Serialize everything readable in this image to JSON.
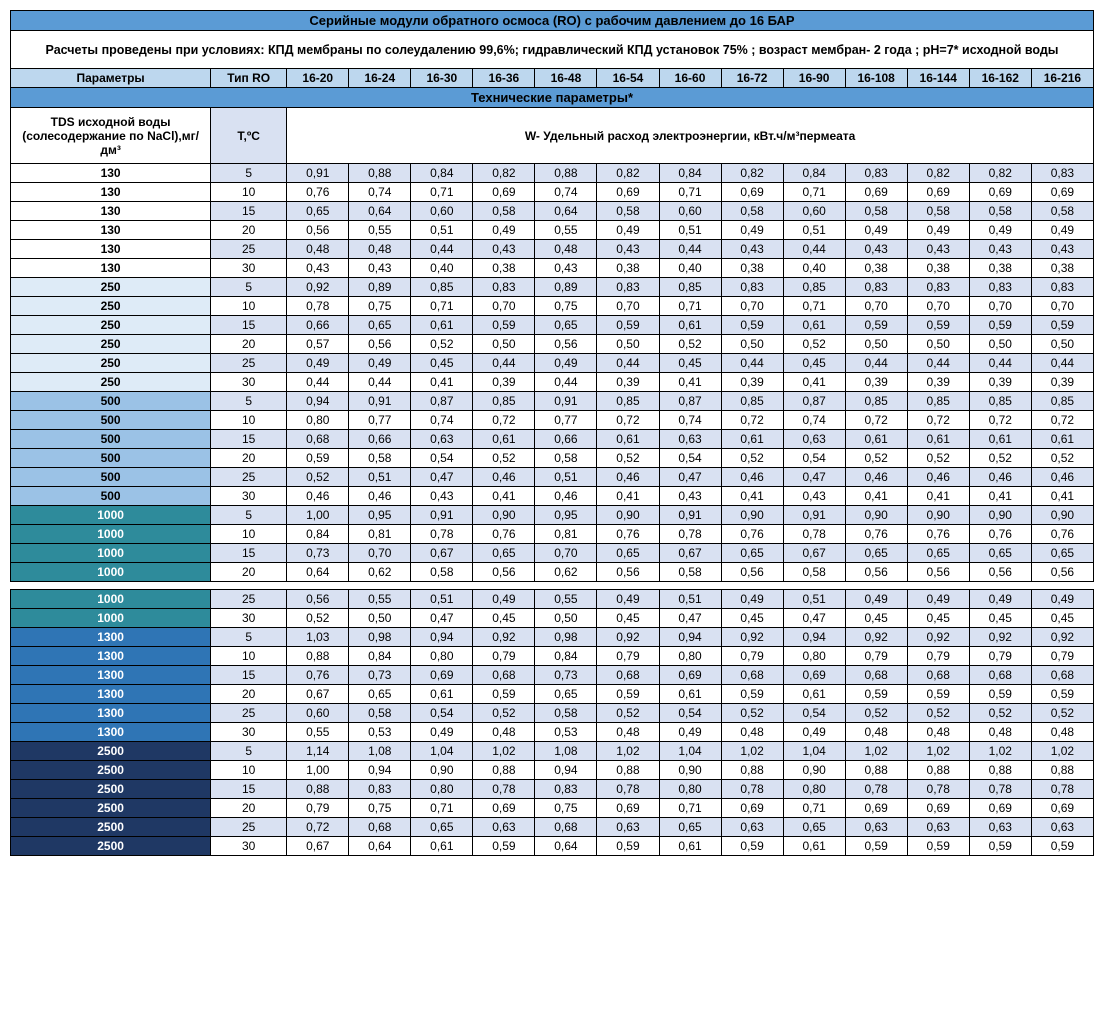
{
  "title": "Серийные модули обратного осмоса (RO) с рабочим давлением до 16 БАР",
  "subtitle": "Расчеты проведены при условиях: КПД мембраны по солеудалению 99,6%; гидравлический КПД установок 75% ; возраст мембран- 2 года ; рН=7* исходной воды",
  "header_param": "Параметры",
  "header_type": "Тип RO",
  "models": [
    "16-20",
    "16-24",
    "16-30",
    "16-36",
    "16-48",
    "16-54",
    "16-60",
    "16-72",
    "16-90",
    "16-108",
    "16-144",
    "16-162",
    "16-216"
  ],
  "tech_params": "Технические параметры*",
  "tds_label": "TDS исходной воды (солесодержание по NaCl),мг/дм³",
  "temp_label": "Т,ºС",
  "w_label": "W- Удельный расход электроэнергии, кВт.ч/м³пермеата",
  "colors": {
    "130": "#ffffff",
    "250": "#deebf7",
    "500": "#9bc2e6",
    "1000": "#2e8b9b",
    "1300": "#2f75b5",
    "2500": "#1f3864",
    "1000_txt": "#ffffff",
    "1300_txt": "#ffffff",
    "2500_txt": "#ffffff",
    "temp_bg_odd": "#d9e1f2",
    "temp_bg_even": "#ffffff",
    "row_odd": "#d9e1f2",
    "row_even": "#ffffff"
  },
  "rows": [
    {
      "tds": "130",
      "t": "5",
      "v": [
        "0,91",
        "0,88",
        "0,84",
        "0,82",
        "0,88",
        "0,82",
        "0,84",
        "0,82",
        "0,84",
        "0,83",
        "0,82",
        "0,82",
        "0,83"
      ]
    },
    {
      "tds": "130",
      "t": "10",
      "v": [
        "0,76",
        "0,74",
        "0,71",
        "0,69",
        "0,74",
        "0,69",
        "0,71",
        "0,69",
        "0,71",
        "0,69",
        "0,69",
        "0,69",
        "0,69"
      ]
    },
    {
      "tds": "130",
      "t": "15",
      "v": [
        "0,65",
        "0,64",
        "0,60",
        "0,58",
        "0,64",
        "0,58",
        "0,60",
        "0,58",
        "0,60",
        "0,58",
        "0,58",
        "0,58",
        "0,58"
      ]
    },
    {
      "tds": "130",
      "t": "20",
      "v": [
        "0,56",
        "0,55",
        "0,51",
        "0,49",
        "0,55",
        "0,49",
        "0,51",
        "0,49",
        "0,51",
        "0,49",
        "0,49",
        "0,49",
        "0,49"
      ]
    },
    {
      "tds": "130",
      "t": "25",
      "v": [
        "0,48",
        "0,48",
        "0,44",
        "0,43",
        "0,48",
        "0,43",
        "0,44",
        "0,43",
        "0,44",
        "0,43",
        "0,43",
        "0,43",
        "0,43"
      ]
    },
    {
      "tds": "130",
      "t": "30",
      "v": [
        "0,43",
        "0,43",
        "0,40",
        "0,38",
        "0,43",
        "0,38",
        "0,40",
        "0,38",
        "0,40",
        "0,38",
        "0,38",
        "0,38",
        "0,38"
      ]
    },
    {
      "tds": "250",
      "t": "5",
      "v": [
        "0,92",
        "0,89",
        "0,85",
        "0,83",
        "0,89",
        "0,83",
        "0,85",
        "0,83",
        "0,85",
        "0,83",
        "0,83",
        "0,83",
        "0,83"
      ]
    },
    {
      "tds": "250",
      "t": "10",
      "v": [
        "0,78",
        "0,75",
        "0,71",
        "0,70",
        "0,75",
        "0,70",
        "0,71",
        "0,70",
        "0,71",
        "0,70",
        "0,70",
        "0,70",
        "0,70"
      ]
    },
    {
      "tds": "250",
      "t": "15",
      "v": [
        "0,66",
        "0,65",
        "0,61",
        "0,59",
        "0,65",
        "0,59",
        "0,61",
        "0,59",
        "0,61",
        "0,59",
        "0,59",
        "0,59",
        "0,59"
      ]
    },
    {
      "tds": "250",
      "t": "20",
      "v": [
        "0,57",
        "0,56",
        "0,52",
        "0,50",
        "0,56",
        "0,50",
        "0,52",
        "0,50",
        "0,52",
        "0,50",
        "0,50",
        "0,50",
        "0,50"
      ]
    },
    {
      "tds": "250",
      "t": "25",
      "v": [
        "0,49",
        "0,49",
        "0,45",
        "0,44",
        "0,49",
        "0,44",
        "0,45",
        "0,44",
        "0,45",
        "0,44",
        "0,44",
        "0,44",
        "0,44"
      ]
    },
    {
      "tds": "250",
      "t": "30",
      "v": [
        "0,44",
        "0,44",
        "0,41",
        "0,39",
        "0,44",
        "0,39",
        "0,41",
        "0,39",
        "0,41",
        "0,39",
        "0,39",
        "0,39",
        "0,39"
      ]
    },
    {
      "tds": "500",
      "t": "5",
      "v": [
        "0,94",
        "0,91",
        "0,87",
        "0,85",
        "0,91",
        "0,85",
        "0,87",
        "0,85",
        "0,87",
        "0,85",
        "0,85",
        "0,85",
        "0,85"
      ]
    },
    {
      "tds": "500",
      "t": "10",
      "v": [
        "0,80",
        "0,77",
        "0,74",
        "0,72",
        "0,77",
        "0,72",
        "0,74",
        "0,72",
        "0,74",
        "0,72",
        "0,72",
        "0,72",
        "0,72"
      ]
    },
    {
      "tds": "500",
      "t": "15",
      "v": [
        "0,68",
        "0,66",
        "0,63",
        "0,61",
        "0,66",
        "0,61",
        "0,63",
        "0,61",
        "0,63",
        "0,61",
        "0,61",
        "0,61",
        "0,61"
      ]
    },
    {
      "tds": "500",
      "t": "20",
      "v": [
        "0,59",
        "0,58",
        "0,54",
        "0,52",
        "0,58",
        "0,52",
        "0,54",
        "0,52",
        "0,54",
        "0,52",
        "0,52",
        "0,52",
        "0,52"
      ]
    },
    {
      "tds": "500",
      "t": "25",
      "v": [
        "0,52",
        "0,51",
        "0,47",
        "0,46",
        "0,51",
        "0,46",
        "0,47",
        "0,46",
        "0,47",
        "0,46",
        "0,46",
        "0,46",
        "0,46"
      ]
    },
    {
      "tds": "500",
      "t": "30",
      "v": [
        "0,46",
        "0,46",
        "0,43",
        "0,41",
        "0,46",
        "0,41",
        "0,43",
        "0,41",
        "0,43",
        "0,41",
        "0,41",
        "0,41",
        "0,41"
      ]
    },
    {
      "tds": "1000",
      "t": "5",
      "v": [
        "1,00",
        "0,95",
        "0,91",
        "0,90",
        "0,95",
        "0,90",
        "0,91",
        "0,90",
        "0,91",
        "0,90",
        "0,90",
        "0,90",
        "0,90"
      ]
    },
    {
      "tds": "1000",
      "t": "10",
      "v": [
        "0,84",
        "0,81",
        "0,78",
        "0,76",
        "0,81",
        "0,76",
        "0,78",
        "0,76",
        "0,78",
        "0,76",
        "0,76",
        "0,76",
        "0,76"
      ]
    },
    {
      "tds": "1000",
      "t": "15",
      "v": [
        "0,73",
        "0,70",
        "0,67",
        "0,65",
        "0,70",
        "0,65",
        "0,67",
        "0,65",
        "0,67",
        "0,65",
        "0,65",
        "0,65",
        "0,65"
      ]
    },
    {
      "tds": "1000",
      "t": "20",
      "v": [
        "0,64",
        "0,62",
        "0,58",
        "0,56",
        "0,62",
        "0,56",
        "0,58",
        "0,56",
        "0,58",
        "0,56",
        "0,56",
        "0,56",
        "0,56"
      ]
    },
    {
      "tds": "1000",
      "t": "25",
      "v": [
        "0,56",
        "0,55",
        "0,51",
        "0,49",
        "0,55",
        "0,49",
        "0,51",
        "0,49",
        "0,51",
        "0,49",
        "0,49",
        "0,49",
        "0,49"
      ],
      "afterGap": true
    },
    {
      "tds": "1000",
      "t": "30",
      "v": [
        "0,52",
        "0,50",
        "0,47",
        "0,45",
        "0,50",
        "0,45",
        "0,47",
        "0,45",
        "0,47",
        "0,45",
        "0,45",
        "0,45",
        "0,45"
      ]
    },
    {
      "tds": "1300",
      "t": "5",
      "v": [
        "1,03",
        "0,98",
        "0,94",
        "0,92",
        "0,98",
        "0,92",
        "0,94",
        "0,92",
        "0,94",
        "0,92",
        "0,92",
        "0,92",
        "0,92"
      ]
    },
    {
      "tds": "1300",
      "t": "10",
      "v": [
        "0,88",
        "0,84",
        "0,80",
        "0,79",
        "0,84",
        "0,79",
        "0,80",
        "0,79",
        "0,80",
        "0,79",
        "0,79",
        "0,79",
        "0,79"
      ]
    },
    {
      "tds": "1300",
      "t": "15",
      "v": [
        "0,76",
        "0,73",
        "0,69",
        "0,68",
        "0,73",
        "0,68",
        "0,69",
        "0,68",
        "0,69",
        "0,68",
        "0,68",
        "0,68",
        "0,68"
      ]
    },
    {
      "tds": "1300",
      "t": "20",
      "v": [
        "0,67",
        "0,65",
        "0,61",
        "0,59",
        "0,65",
        "0,59",
        "0,61",
        "0,59",
        "0,61",
        "0,59",
        "0,59",
        "0,59",
        "0,59"
      ]
    },
    {
      "tds": "1300",
      "t": "25",
      "v": [
        "0,60",
        "0,58",
        "0,54",
        "0,52",
        "0,58",
        "0,52",
        "0,54",
        "0,52",
        "0,54",
        "0,52",
        "0,52",
        "0,52",
        "0,52"
      ]
    },
    {
      "tds": "1300",
      "t": "30",
      "v": [
        "0,55",
        "0,53",
        "0,49",
        "0,48",
        "0,53",
        "0,48",
        "0,49",
        "0,48",
        "0,49",
        "0,48",
        "0,48",
        "0,48",
        "0,48"
      ]
    },
    {
      "tds": "2500",
      "t": "5",
      "v": [
        "1,14",
        "1,08",
        "1,04",
        "1,02",
        "1,08",
        "1,02",
        "1,04",
        "1,02",
        "1,04",
        "1,02",
        "1,02",
        "1,02",
        "1,02"
      ]
    },
    {
      "tds": "2500",
      "t": "10",
      "v": [
        "1,00",
        "0,94",
        "0,90",
        "0,88",
        "0,94",
        "0,88",
        "0,90",
        "0,88",
        "0,90",
        "0,88",
        "0,88",
        "0,88",
        "0,88"
      ]
    },
    {
      "tds": "2500",
      "t": "15",
      "v": [
        "0,88",
        "0,83",
        "0,80",
        "0,78",
        "0,83",
        "0,78",
        "0,80",
        "0,78",
        "0,80",
        "0,78",
        "0,78",
        "0,78",
        "0,78"
      ]
    },
    {
      "tds": "2500",
      "t": "20",
      "v": [
        "0,79",
        "0,75",
        "0,71",
        "0,69",
        "0,75",
        "0,69",
        "0,71",
        "0,69",
        "0,71",
        "0,69",
        "0,69",
        "0,69",
        "0,69"
      ]
    },
    {
      "tds": "2500",
      "t": "25",
      "v": [
        "0,72",
        "0,68",
        "0,65",
        "0,63",
        "0,68",
        "0,63",
        "0,65",
        "0,63",
        "0,65",
        "0,63",
        "0,63",
        "0,63",
        "0,63"
      ]
    },
    {
      "tds": "2500",
      "t": "30",
      "v": [
        "0,67",
        "0,64",
        "0,61",
        "0,59",
        "0,64",
        "0,59",
        "0,61",
        "0,59",
        "0,61",
        "0,59",
        "0,59",
        "0,59",
        "0,59"
      ]
    }
  ]
}
